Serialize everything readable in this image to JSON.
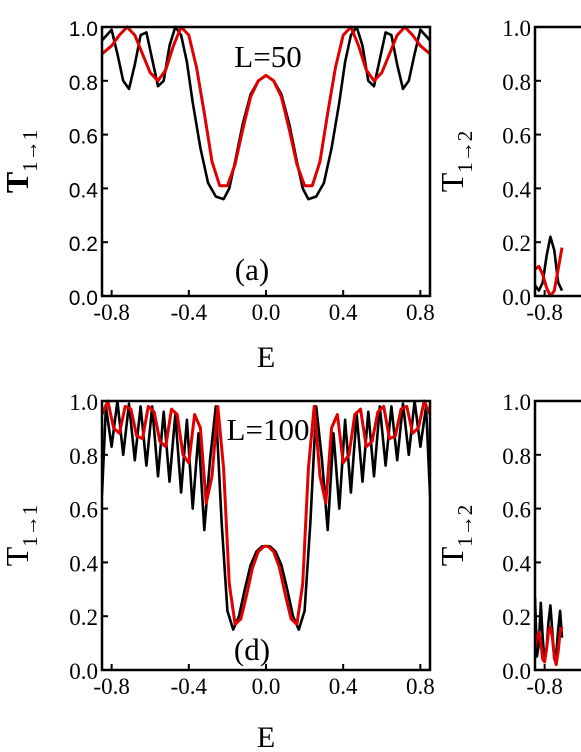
{
  "chart_data": [
    {
      "type": "line",
      "panel_label": "(a)",
      "annotation": "L=50",
      "xlabel": "E",
      "ylabel": "T1→1",
      "ylabel_main": "T",
      "ylabel_sub": "1→1",
      "xlim": [
        -0.85,
        0.85
      ],
      "ylim": [
        0.0,
        1.0
      ],
      "xticks": [
        -0.8,
        -0.4,
        0.0,
        0.4,
        0.8
      ],
      "xtick_labels": [
        "-0.8",
        "-0.4",
        "0.0",
        "0.4",
        "0.8"
      ],
      "yticks": [
        0.0,
        0.2,
        0.4,
        0.6,
        0.8,
        1.0
      ],
      "ytick_labels": [
        "0.0",
        "0.2",
        "0.4",
        "0.6",
        "0.8",
        "1.0"
      ],
      "series": [
        {
          "color": "#000000",
          "x": [
            -0.85,
            -0.8,
            -0.77,
            -0.74,
            -0.71,
            -0.68,
            -0.65,
            -0.62,
            -0.59,
            -0.56,
            -0.53,
            -0.5,
            -0.47,
            -0.44,
            -0.41,
            -0.38,
            -0.34,
            -0.3,
            -0.26,
            -0.22,
            -0.19,
            -0.16,
            -0.12,
            -0.08,
            -0.04,
            0.0,
            0.04,
            0.08,
            0.12,
            0.16,
            0.19,
            0.22,
            0.26,
            0.3,
            0.34,
            0.38,
            0.41,
            0.44,
            0.47,
            0.5,
            0.53,
            0.56,
            0.59,
            0.62,
            0.65,
            0.68,
            0.71,
            0.74,
            0.77,
            0.8,
            0.85
          ],
          "y": [
            0.95,
            0.99,
            0.9,
            0.8,
            0.77,
            0.86,
            0.97,
            0.98,
            0.88,
            0.78,
            0.8,
            0.93,
            1.0,
            0.97,
            0.87,
            0.72,
            0.55,
            0.42,
            0.37,
            0.36,
            0.4,
            0.5,
            0.64,
            0.75,
            0.8,
            0.82,
            0.8,
            0.75,
            0.64,
            0.5,
            0.4,
            0.36,
            0.37,
            0.42,
            0.55,
            0.72,
            0.87,
            0.97,
            1.0,
            0.93,
            0.8,
            0.78,
            0.88,
            0.98,
            0.97,
            0.86,
            0.77,
            0.8,
            0.9,
            0.99,
            0.95
          ]
        },
        {
          "color": "#e00000",
          "x": [
            -0.85,
            -0.8,
            -0.76,
            -0.72,
            -0.68,
            -0.64,
            -0.6,
            -0.56,
            -0.52,
            -0.48,
            -0.44,
            -0.4,
            -0.36,
            -0.32,
            -0.28,
            -0.24,
            -0.2,
            -0.16,
            -0.12,
            -0.08,
            -0.04,
            0.0,
            0.04,
            0.08,
            0.12,
            0.16,
            0.2,
            0.24,
            0.28,
            0.32,
            0.36,
            0.4,
            0.44,
            0.48,
            0.52,
            0.56,
            0.6,
            0.64,
            0.68,
            0.72,
            0.76,
            0.8,
            0.85
          ],
          "y": [
            0.9,
            0.93,
            0.97,
            1.0,
            0.97,
            0.9,
            0.83,
            0.8,
            0.84,
            0.93,
            1.0,
            0.97,
            0.85,
            0.68,
            0.5,
            0.41,
            0.41,
            0.49,
            0.62,
            0.74,
            0.8,
            0.82,
            0.8,
            0.74,
            0.62,
            0.49,
            0.41,
            0.41,
            0.5,
            0.68,
            0.85,
            0.97,
            1.0,
            0.93,
            0.84,
            0.8,
            0.83,
            0.9,
            0.97,
            1.0,
            0.97,
            0.93,
            0.9
          ]
        }
      ]
    },
    {
      "type": "line",
      "panel_label": "(d)",
      "annotation": "L=100",
      "xlabel": "E",
      "ylabel": "T1→1",
      "ylabel_main": "T",
      "ylabel_sub": "1→1",
      "xlim": [
        -0.85,
        0.85
      ],
      "ylim": [
        0.0,
        1.0
      ],
      "xticks": [
        -0.8,
        -0.4,
        0.0,
        0.4,
        0.8
      ],
      "xtick_labels": [
        "-0.8",
        "-0.4",
        "0.0",
        "0.4",
        "0.8"
      ],
      "yticks": [
        0.0,
        0.2,
        0.4,
        0.6,
        0.8,
        1.0
      ],
      "ytick_labels": [
        "0.0",
        "0.2",
        "0.4",
        "0.6",
        "0.8",
        "1.0"
      ],
      "series": [
        {
          "color": "#000000",
          "x": [
            -0.85,
            -0.83,
            -0.8,
            -0.77,
            -0.74,
            -0.71,
            -0.68,
            -0.65,
            -0.62,
            -0.59,
            -0.56,
            -0.53,
            -0.5,
            -0.47,
            -0.44,
            -0.41,
            -0.38,
            -0.35,
            -0.32,
            -0.29,
            -0.26,
            -0.23,
            -0.2,
            -0.17,
            -0.14,
            -0.11,
            -0.08,
            -0.05,
            -0.02,
            0.0,
            0.02,
            0.05,
            0.08,
            0.11,
            0.14,
            0.17,
            0.2,
            0.23,
            0.26,
            0.29,
            0.32,
            0.35,
            0.38,
            0.41,
            0.44,
            0.47,
            0.5,
            0.53,
            0.56,
            0.59,
            0.62,
            0.65,
            0.68,
            0.71,
            0.74,
            0.77,
            0.8,
            0.83,
            0.85
          ],
          "y": [
            0.65,
            0.98,
            0.83,
            1.0,
            0.8,
            0.99,
            0.78,
            0.98,
            0.76,
            0.98,
            0.72,
            0.96,
            0.7,
            0.95,
            0.66,
            0.93,
            0.6,
            0.88,
            0.52,
            0.78,
            0.98,
            0.55,
            0.22,
            0.15,
            0.2,
            0.3,
            0.39,
            0.44,
            0.46,
            0.46,
            0.46,
            0.44,
            0.39,
            0.3,
            0.2,
            0.15,
            0.22,
            0.55,
            0.98,
            0.78,
            0.52,
            0.88,
            0.6,
            0.93,
            0.66,
            0.95,
            0.7,
            0.96,
            0.72,
            0.98,
            0.76,
            0.98,
            0.78,
            0.99,
            0.8,
            1.0,
            0.83,
            0.98,
            0.65
          ]
        },
        {
          "color": "#e00000",
          "x": [
            -0.85,
            -0.82,
            -0.79,
            -0.76,
            -0.73,
            -0.7,
            -0.67,
            -0.64,
            -0.61,
            -0.58,
            -0.55,
            -0.52,
            -0.49,
            -0.46,
            -0.43,
            -0.4,
            -0.37,
            -0.34,
            -0.31,
            -0.28,
            -0.25,
            -0.22,
            -0.19,
            -0.16,
            -0.13,
            -0.1,
            -0.07,
            -0.04,
            -0.01,
            0.0,
            0.01,
            0.04,
            0.07,
            0.1,
            0.13,
            0.16,
            0.19,
            0.22,
            0.25,
            0.28,
            0.31,
            0.34,
            0.37,
            0.4,
            0.43,
            0.46,
            0.49,
            0.52,
            0.55,
            0.58,
            0.61,
            0.64,
            0.67,
            0.7,
            0.73,
            0.76,
            0.79,
            0.82,
            0.85
          ],
          "y": [
            0.95,
            1.0,
            0.9,
            0.88,
            0.98,
            0.97,
            0.87,
            0.86,
            0.98,
            0.96,
            0.85,
            0.83,
            0.97,
            0.95,
            0.8,
            0.77,
            0.95,
            0.9,
            0.62,
            0.72,
            0.98,
            0.75,
            0.32,
            0.17,
            0.19,
            0.28,
            0.38,
            0.44,
            0.46,
            0.46,
            0.46,
            0.44,
            0.38,
            0.28,
            0.19,
            0.17,
            0.32,
            0.75,
            0.98,
            0.72,
            0.62,
            0.9,
            0.95,
            0.77,
            0.8,
            0.95,
            0.97,
            0.83,
            0.85,
            0.96,
            0.98,
            0.86,
            0.87,
            0.97,
            0.98,
            0.88,
            0.9,
            1.0,
            0.95
          ]
        }
      ]
    },
    {
      "type": "line",
      "panel_label": "",
      "annotation": "",
      "xlabel": "",
      "ylabel": "T1→2",
      "ylabel_main": "T",
      "ylabel_sub": "1→2",
      "xlim": [
        -0.85,
        0.85
      ],
      "ylim": [
        0.0,
        1.0
      ],
      "xticks": [
        -0.8
      ],
      "xtick_labels": [
        "-0.8"
      ],
      "yticks": [
        0.0,
        0.2,
        0.4,
        0.6,
        0.8,
        1.0
      ],
      "ytick_labels": [
        "0.0",
        "0.2",
        "0.4",
        "0.6",
        "0.8",
        "1.0"
      ],
      "series": [
        {
          "color": "#000000",
          "x": [
            -0.85,
            -0.83,
            -0.81,
            -0.79,
            -0.77,
            -0.75,
            -0.73,
            -0.71
          ],
          "y": [
            0.04,
            0.02,
            0.05,
            0.15,
            0.22,
            0.17,
            0.05,
            0.02
          ]
        },
        {
          "color": "#e00000",
          "x": [
            -0.85,
            -0.83,
            -0.81,
            -0.79,
            -0.77,
            -0.75,
            -0.73,
            -0.71
          ],
          "y": [
            0.1,
            0.11,
            0.08,
            0.03,
            0.0,
            0.02,
            0.1,
            0.18
          ]
        }
      ]
    },
    {
      "type": "line",
      "panel_label": "",
      "annotation": "",
      "xlabel": "",
      "ylabel": "T1→2",
      "ylabel_main": "T",
      "ylabel_sub": "1→2",
      "xlim": [
        -0.85,
        0.85
      ],
      "ylim": [
        0.0,
        1.0
      ],
      "xticks": [
        -0.8
      ],
      "xtick_labels": [
        "-0.8"
      ],
      "yticks": [
        0.0,
        0.2,
        0.4,
        0.6,
        0.8,
        1.0
      ],
      "ytick_labels": [
        "0.0",
        "0.2",
        "0.4",
        "0.6",
        "0.8",
        "1.0"
      ],
      "series": [
        {
          "color": "#000000",
          "x": [
            -0.85,
            -0.84,
            -0.83,
            -0.82,
            -0.81,
            -0.8,
            -0.79,
            -0.78,
            -0.77,
            -0.76,
            -0.75,
            -0.74,
            -0.73,
            -0.72,
            -0.71
          ],
          "y": [
            0.27,
            0.05,
            0.1,
            0.25,
            0.12,
            0.03,
            0.08,
            0.18,
            0.24,
            0.14,
            0.04,
            0.06,
            0.15,
            0.22,
            0.12
          ]
        },
        {
          "color": "#e00000",
          "x": [
            -0.85,
            -0.84,
            -0.83,
            -0.82,
            -0.81,
            -0.8,
            -0.79,
            -0.78,
            -0.77,
            -0.76,
            -0.75,
            -0.74,
            -0.73,
            -0.72,
            -0.71
          ],
          "y": [
            0.08,
            0.12,
            0.14,
            0.1,
            0.04,
            0.03,
            0.08,
            0.14,
            0.16,
            0.12,
            0.05,
            0.02,
            0.07,
            0.14,
            0.16
          ]
        }
      ]
    }
  ]
}
